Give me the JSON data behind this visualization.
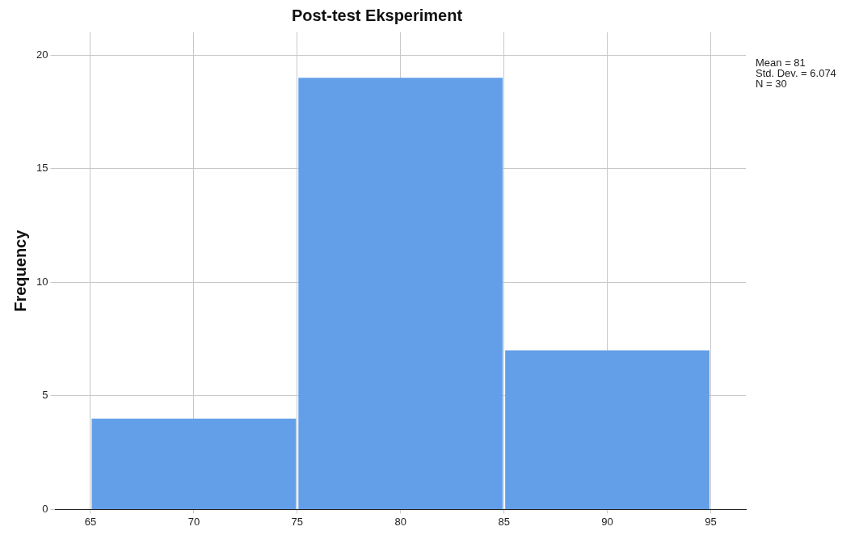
{
  "chart_data": {
    "type": "histogram",
    "title": "Post-test Eksperiment",
    "ylabel": "Frequency",
    "bins": [
      65,
      75,
      85,
      95
    ],
    "values": [
      4,
      19,
      7
    ],
    "color": "#639fe8",
    "xlim": [
      63.3,
      96.7
    ],
    "xticks": [
      65,
      70,
      75,
      80,
      85,
      90,
      95
    ],
    "ylim": [
      0,
      21
    ],
    "yticks": [
      0,
      5,
      10,
      15,
      20
    ],
    "grid": true,
    "legend": false,
    "annotations": [
      "Mean = 81",
      "Std. Dev. = 6.074",
      "N = 30"
    ]
  }
}
